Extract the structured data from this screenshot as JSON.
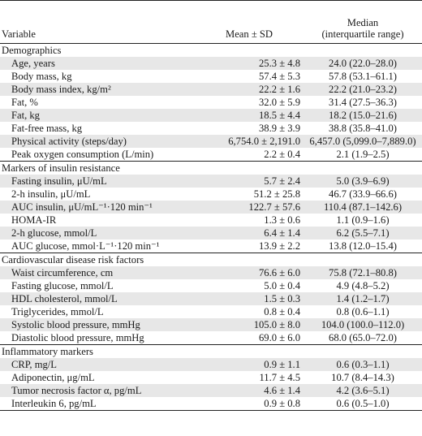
{
  "header": {
    "variable": "Variable",
    "mean": "Mean ± SD",
    "median_line1": "Median",
    "median_line2": "(interquartile range)"
  },
  "sections": [
    {
      "title": "Demographics",
      "rows": [
        {
          "label": "Age, years",
          "mean": "25.3 ± 4.8",
          "median": "24.0 (22.0–28.0)"
        },
        {
          "label": "Body mass, kg",
          "mean": "57.4 ± 5.3",
          "median": "57.8 (53.1–61.1)"
        },
        {
          "label": "Body mass index, kg/m²",
          "mean": "22.2 ± 1.6",
          "median": "22.2 (21.0–23.2)"
        },
        {
          "label": "Fat, %",
          "mean": "32.0 ± 5.9",
          "median": "31.4 (27.5–36.3)"
        },
        {
          "label": "Fat, kg",
          "mean": "18.5 ± 4.4",
          "median": "18.2 (15.0–21.6)"
        },
        {
          "label": "Fat-free mass, kg",
          "mean": "38.9 ± 3.9",
          "median": "38.8 (35.8–41.0)"
        },
        {
          "label": "Physical activity (steps/day)",
          "mean": "6,754.0 ± 2,191.0",
          "median": "6,457.0 (5,099.0–7,889.0)"
        },
        {
          "label": "Peak oxygen consumption (L/min)",
          "mean": "2.2 ± 0.4",
          "median": "2.1 (1.9–2.5)"
        }
      ]
    },
    {
      "title": "Markers of insulin resistance",
      "rows": [
        {
          "label": "Fasting insulin, μU/mL",
          "mean": "5.7 ± 2.4",
          "median": "5.0 (3.9–6.9)"
        },
        {
          "label": "2-h insulin, μU/mL",
          "mean": "51.2 ± 25.8",
          "median": "46.7 (33.9–66.6)"
        },
        {
          "label": "AUC insulin, μU/mL⁻¹·120 min⁻¹",
          "mean": "122.7 ± 57.6",
          "median": "110.4 (87.1–142.6)"
        },
        {
          "label": "HOMA-IR",
          "mean": "1.3 ± 0.6",
          "median": "1.1 (0.9–1.6)"
        },
        {
          "label": "2-h glucose, mmol/L",
          "mean": "6.4 ± 1.4",
          "median": "6.2 (5.5–7.1)"
        },
        {
          "label": "AUC glucose, mmol·L⁻¹·120 min⁻¹",
          "mean": "13.9 ± 2.2",
          "median": "13.8 (12.0–15.4)"
        }
      ]
    },
    {
      "title": "Cardiovascular disease risk factors",
      "rows": [
        {
          "label": "Waist circumference, cm",
          "mean": "76.6 ± 6.0",
          "median": "75.8 (72.1–80.8)"
        },
        {
          "label": "Fasting glucose, mmol/L",
          "mean": "5.0 ± 0.4",
          "median": "4.9 (4.8–5.2)"
        },
        {
          "label": "HDL cholesterol, mmol/L",
          "mean": "1.5 ± 0.3",
          "median": "1.4 (1.2–1.7)"
        },
        {
          "label": "Triglycerides, mmol/L",
          "mean": "0.8 ± 0.4",
          "median": "0.8 (0.6–1.1)"
        },
        {
          "label": "Systolic blood pressure, mmHg",
          "mean": "105.0 ± 8.0",
          "median": "104.0 (100.0–112.0)"
        },
        {
          "label": "Diastolic blood pressure, mmHg",
          "mean": "69.0 ± 6.0",
          "median": "68.0 (65.0–72.0)"
        }
      ]
    },
    {
      "title": "Inflammatory markers",
      "rows": [
        {
          "label": "CRP, mg/L",
          "mean": "0.9 ± 1.1",
          "median": "0.6 (0.3–1.1)"
        },
        {
          "label": "Adiponectin, μg/mL",
          "mean": "11.7 ± 4.5",
          "median": "10.7 (8.4–14.3)"
        },
        {
          "label": "Tumor necrosis factor α, pg/mL",
          "mean": "4.6 ± 1.4",
          "median": "4.2 (3.6–5.1)"
        },
        {
          "label": "Interleukin 6, pg/mL",
          "mean": "0.9 ± 0.8",
          "median": "0.6 (0.5–1.0)"
        }
      ]
    }
  ],
  "colors": {
    "row_shade": "#e7e7e7",
    "rule": "#222222",
    "text": "#1a1a1a"
  }
}
